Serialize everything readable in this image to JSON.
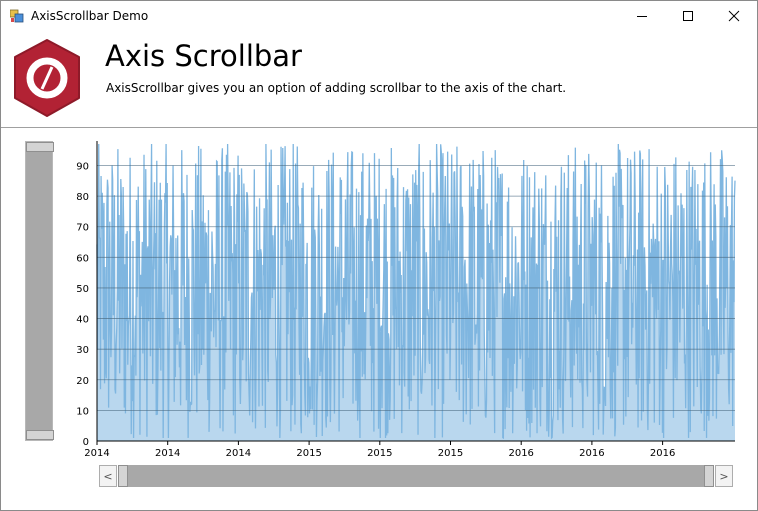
{
  "window": {
    "title": "AxisScrollbar Demo",
    "controls": [
      "minimize",
      "maximize",
      "close"
    ]
  },
  "header": {
    "title": "Axis Scrollbar",
    "description": "AxisScrollbar gives you an option of adding scrollbar to the axis of the chart.",
    "logo_color": "#b22234"
  },
  "chart_data": {
    "type": "area",
    "title": "",
    "xlabel": "",
    "ylabel": "",
    "ylim": [
      0,
      98
    ],
    "yticks": [
      0,
      10,
      20,
      30,
      40,
      50,
      60,
      70,
      80,
      90
    ],
    "xtick_labels": [
      "2014",
      "2014",
      "2014",
      "2015",
      "2015",
      "2015",
      "2016",
      "2016",
      "2016"
    ],
    "grid": true,
    "series_color": "#7fb6e0",
    "gridline_color": "#4a6a80",
    "note_series": "dense random daily values between roughly 0 and 98"
  },
  "scrollbars": {
    "vertical": {
      "thumb_start": 0.0,
      "thumb_end": 1.0
    },
    "horizontal": {
      "thumb_start": 0.0,
      "thumb_end": 1.0,
      "left_arrow": "<",
      "right_arrow": ">"
    }
  }
}
